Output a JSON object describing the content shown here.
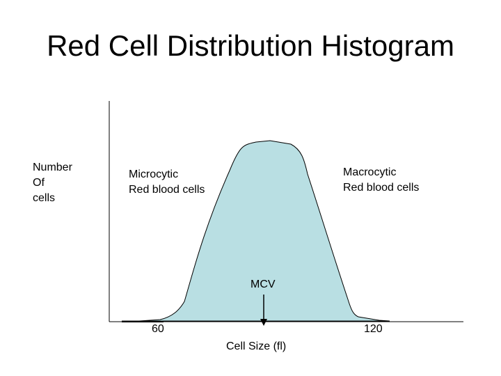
{
  "title": "Red Cell Distribution Histogram",
  "y_axis_label": [
    "Number",
    "Of",
    "cells"
  ],
  "x_axis_label": "Cell Size (fl)",
  "ticks": [
    "60",
    "120"
  ],
  "annotations": {
    "microcytic": [
      "Microcytic",
      "Red blood cells"
    ],
    "macrocytic": [
      "Macrocytic",
      "Red blood cells"
    ],
    "mcv": "MCV"
  },
  "colors": {
    "fill": "#b9dfe3",
    "stroke": "#000000"
  }
}
